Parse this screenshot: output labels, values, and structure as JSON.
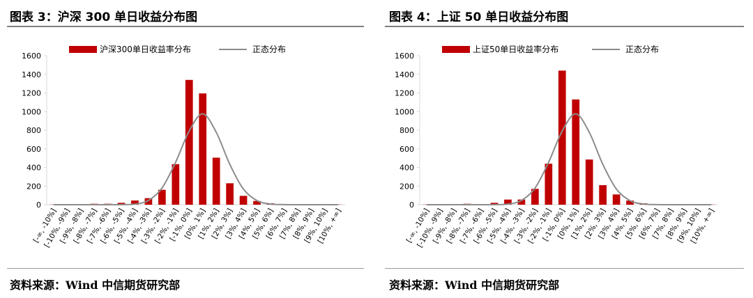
{
  "colors": {
    "bar": "#c00000",
    "normal_line": "#8c8c8c",
    "axis": "#d9d9d9"
  },
  "source_left": "资料来源：Wind  中信期货研究部",
  "source_right": "资料来源：Wind  中信期货研究部",
  "chart_data": [
    {
      "type": "bar",
      "title": "图表  3：沪深 300 单日收益分布图",
      "categories": [
        "[-∞, -10%]",
        "[-10%, -9%]",
        "[-9%, -8%]",
        "[-8%, -7%]",
        "[-7%, -6%]",
        "[-6%, -5%]",
        "[-5%, -4%]",
        "[-4%, -3%]",
        "[-3%, -2%]",
        "[-2%, -1%]",
        "[-1%, 0%]",
        "[0%, 1%]",
        "[1%, 2%]",
        "[2%, 3%]",
        "[3%, 4%]",
        "[4%, 5%]",
        "[5%, 6%]",
        "[6%, 7%]",
        "[7%, 8%]",
        "[8%, 9%]",
        "[9%, 10%]",
        "[10%, +∞]"
      ],
      "series": [
        {
          "name": "沪深300单日收益率分布",
          "kind": "bar",
          "values": [
            2,
            3,
            4,
            10,
            10,
            20,
            45,
            70,
            160,
            435,
            1340,
            1195,
            505,
            230,
            95,
            40,
            15,
            5,
            3,
            2,
            2,
            2
          ]
        },
        {
          "name": "正态分布",
          "kind": "line",
          "values": [
            0,
            0,
            0,
            0,
            0,
            1,
            7,
            46,
            179,
            455,
            790,
            976,
            777,
            433,
            168,
            44,
            7,
            1,
            0,
            0,
            0,
            0
          ]
        }
      ],
      "ylim": [
        0,
        1600
      ],
      "yticks": [
        "0",
        "200",
        "400",
        "600",
        "800",
        "1000",
        "1200",
        "1400",
        "1600"
      ],
      "legend_position": "top"
    },
    {
      "type": "bar",
      "title": "图表  4：上证 50 单日收益分布图",
      "categories": [
        "[-∞, -10%]",
        "[-10%, -9%]",
        "[-9%, -8%]",
        "[-8%, -7%]",
        "[-7%, -6%]",
        "[-6%, -5%]",
        "[-5%, -4%]",
        "[-4%, -3%]",
        "[-3%, -2%]",
        "[-2%, -1%]",
        "[-1%, 0%]",
        "[0%, 1%]",
        "[1%, 2%]",
        "[2%, 3%]",
        "[3%, 4%]",
        "[4%, 5%]",
        "[5%, 6%]",
        "[6%, 7%]",
        "[7%, 8%]",
        "[8%, 9%]",
        "[9%, 10%]",
        "[10%, +∞]"
      ],
      "series": [
        {
          "name": "上证50单日收益率分布",
          "kind": "bar",
          "values": [
            2,
            3,
            5,
            10,
            5,
            20,
            55,
            55,
            170,
            440,
            1440,
            1130,
            485,
            210,
            110,
            45,
            15,
            5,
            3,
            2,
            2,
            2
          ]
        },
        {
          "name": "正态分布",
          "kind": "line",
          "values": [
            0,
            0,
            0,
            0,
            0,
            1,
            7,
            46,
            179,
            455,
            790,
            976,
            777,
            433,
            168,
            44,
            7,
            1,
            0,
            0,
            0,
            0
          ]
        }
      ],
      "ylim": [
        0,
        1600
      ],
      "yticks": [
        "0",
        "200",
        "400",
        "600",
        "800",
        "1000",
        "1200",
        "1400",
        "1600"
      ],
      "legend_position": "top"
    }
  ]
}
